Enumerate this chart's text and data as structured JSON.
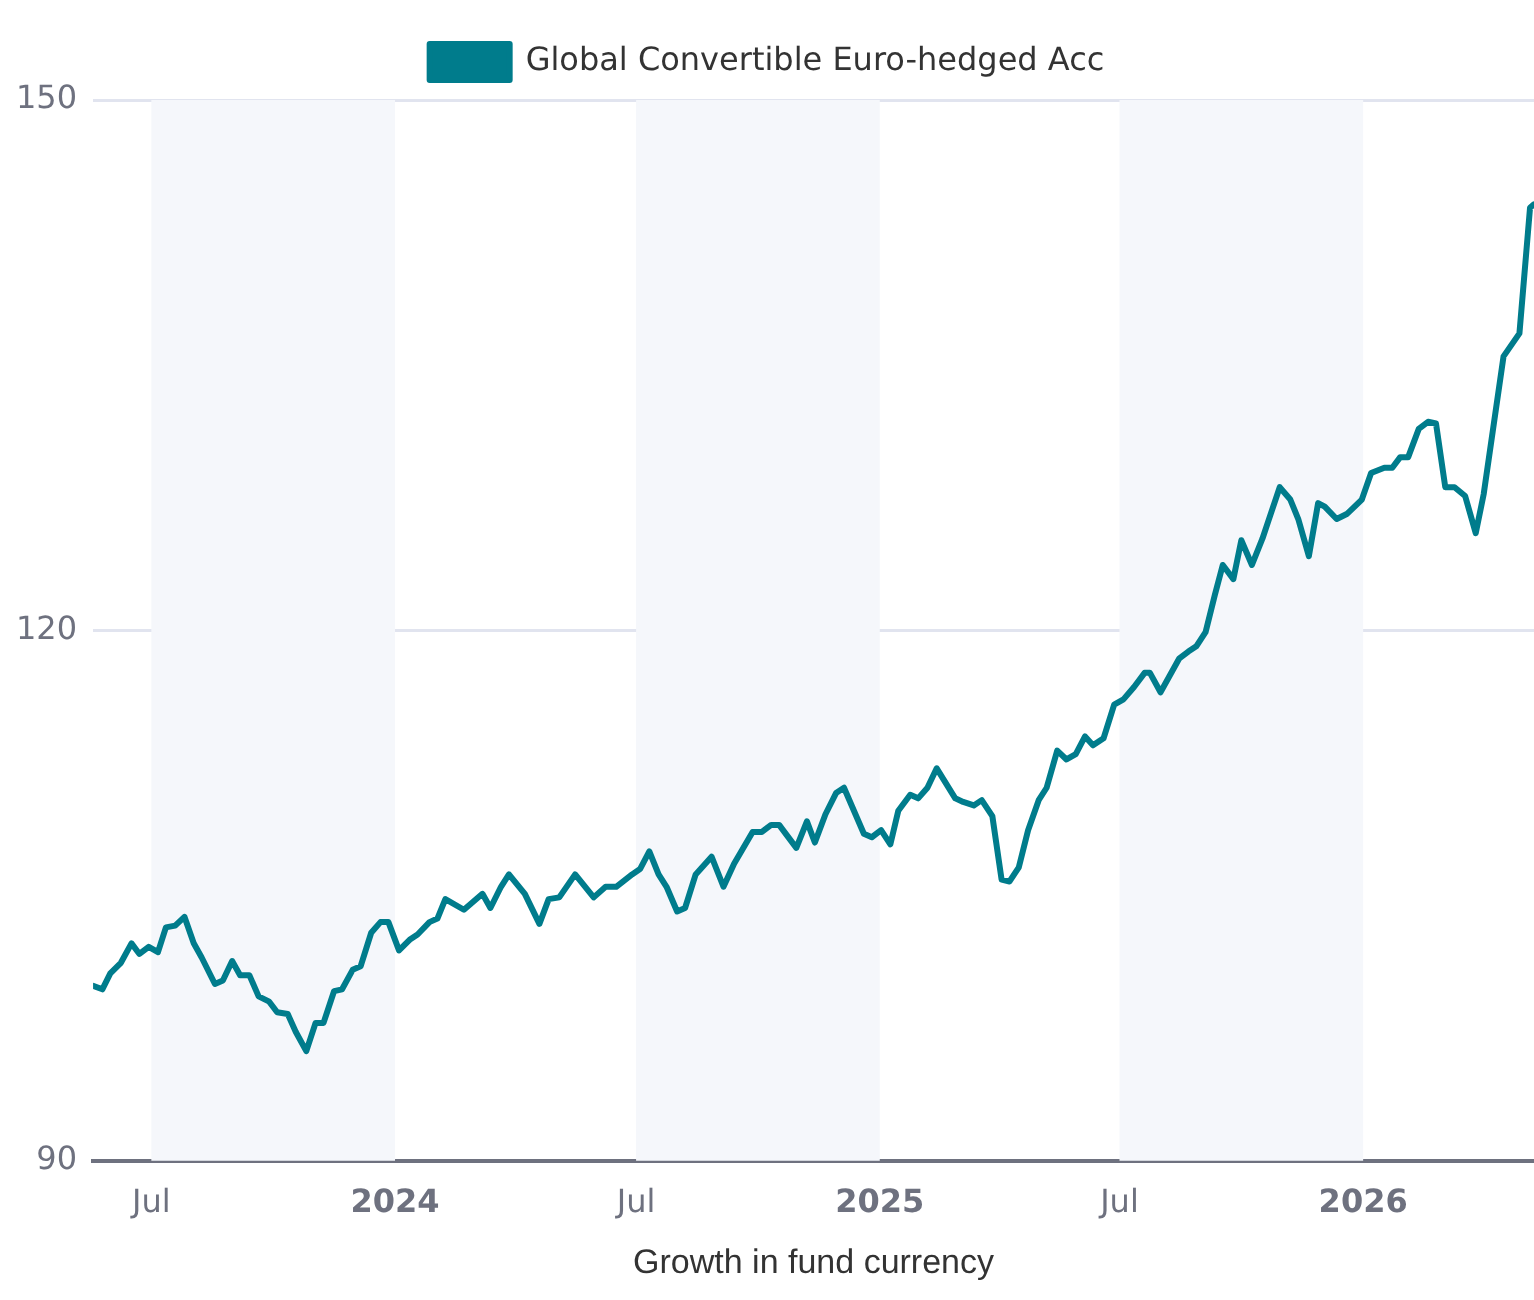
{
  "chart_data": {
    "type": "line",
    "xlabel": "Growth in fund currency",
    "legend": "top",
    "grid": "y",
    "marker": "none",
    "line_style": "solid",
    "xlim": [
      "2023-05-18",
      "2026-05-10"
    ],
    "ylim": [
      90,
      150
    ],
    "yticks": [
      90,
      120,
      150
    ],
    "xticks": [
      {
        "value": "2023-07-01",
        "label": "Jul"
      },
      {
        "value": "2024-01-01",
        "label": "2024"
      },
      {
        "value": "2024-07-01",
        "label": "Jul"
      },
      {
        "value": "2025-01-01",
        "label": "2025"
      },
      {
        "value": "2025-07-01",
        "label": "Jul"
      },
      {
        "value": "2026-01-01",
        "label": "2026"
      }
    ],
    "bands": [
      {
        "axis": "x",
        "from": "2023-07-01",
        "to": "2024-01-01",
        "color": "#f5f7fb"
      },
      {
        "axis": "x",
        "from": "2024-07-01",
        "to": "2025-01-01",
        "color": "#f5f7fb"
      },
      {
        "axis": "x",
        "from": "2025-07-01",
        "to": "2026-01-01",
        "color": "#f5f7fb"
      }
    ],
    "x": [
      "2023-05-18",
      "2023-05-25",
      "2023-05-31",
      "2023-06-08",
      "2023-06-16",
      "2023-06-22",
      "2023-06-29",
      "2023-07-06",
      "2023-07-12",
      "2023-07-19",
      "2023-07-26",
      "2023-08-02",
      "2023-08-08",
      "2023-08-18",
      "2023-08-24",
      "2023-08-31",
      "2023-09-06",
      "2023-09-13",
      "2023-09-20",
      "2023-09-28",
      "2023-10-04",
      "2023-10-12",
      "2023-10-18",
      "2023-10-26",
      "2023-11-02",
      "2023-11-08",
      "2023-11-16",
      "2023-11-22",
      "2023-11-30",
      "2023-12-06",
      "2023-12-14",
      "2023-12-21",
      "2023-12-27",
      "2024-01-04",
      "2024-01-12",
      "2024-01-18",
      "2024-01-27",
      "2024-02-02",
      "2024-02-08",
      "2024-02-22",
      "2024-03-07",
      "2024-03-13",
      "2024-03-21",
      "2024-03-27",
      "2024-04-08",
      "2024-04-19",
      "2024-04-26",
      "2024-05-04",
      "2024-05-16",
      "2024-05-30",
      "2024-06-08",
      "2024-06-16",
      "2024-06-28",
      "2024-07-04",
      "2024-07-11",
      "2024-07-18",
      "2024-07-24",
      "2024-08-01",
      "2024-08-07",
      "2024-08-15",
      "2024-08-27",
      "2024-09-05",
      "2024-09-13",
      "2024-09-27",
      "2024-10-04",
      "2024-10-11",
      "2024-10-17",
      "2024-10-30",
      "2024-11-07",
      "2024-11-13",
      "2024-11-21",
      "2024-11-29",
      "2024-12-05",
      "2024-12-20",
      "2024-12-26",
      "2025-01-02",
      "2025-01-09",
      "2025-01-15",
      "2025-01-24",
      "2025-01-30",
      "2025-02-06",
      "2025-02-13",
      "2025-02-27",
      "2025-03-05",
      "2025-03-13",
      "2025-03-19",
      "2025-03-27",
      "2025-04-03",
      "2025-04-09",
      "2025-04-16",
      "2025-04-23",
      "2025-05-01",
      "2025-05-07",
      "2025-05-15",
      "2025-05-22",
      "2025-05-29",
      "2025-06-05",
      "2025-06-11",
      "2025-06-19",
      "2025-06-27",
      "2025-07-04",
      "2025-07-12",
      "2025-07-20",
      "2025-07-24",
      "2025-08-01",
      "2025-08-15",
      "2025-08-22",
      "2025-08-28",
      "2025-09-04",
      "2025-09-11",
      "2025-09-17",
      "2025-09-25",
      "2025-10-01",
      "2025-10-09",
      "2025-10-17",
      "2025-10-30",
      "2025-11-07",
      "2025-11-13",
      "2025-11-21",
      "2025-11-28",
      "2025-12-03",
      "2025-12-12",
      "2025-12-20",
      "2025-12-31",
      "2026-01-07",
      "2026-01-17",
      "2026-01-23",
      "2026-01-29",
      "2026-02-04",
      "2026-02-12",
      "2026-02-19",
      "2026-02-25",
      "2026-03-04",
      "2026-03-11",
      "2026-03-19",
      "2026-03-27",
      "2026-04-02",
      "2026-04-17",
      "2026-04-29",
      "2026-05-07",
      "2026-05-10"
    ],
    "series": [
      {
        "name": "Global Convertible Euro-hedged Acc",
        "color": "#007c8c",
        "values": [
          99.9,
          99.7,
          100.6,
          101.2,
          102.3,
          101.7,
          102.1,
          101.8,
          103.2,
          103.3,
          103.8,
          102.3,
          101.5,
          100.0,
          100.2,
          101.3,
          100.5,
          100.5,
          99.3,
          99.0,
          98.4,
          98.3,
          97.3,
          96.2,
          97.8,
          97.8,
          99.6,
          99.7,
          100.8,
          101.0,
          102.9,
          103.5,
          103.5,
          101.9,
          102.5,
          102.8,
          103.5,
          103.7,
          104.8,
          104.2,
          105.1,
          104.3,
          105.5,
          106.2,
          105.1,
          103.4,
          104.8,
          104.9,
          106.2,
          104.9,
          105.5,
          105.5,
          106.2,
          106.5,
          107.5,
          106.2,
          105.5,
          104.1,
          104.3,
          106.2,
          107.2,
          105.5,
          106.8,
          108.6,
          108.6,
          109.0,
          109.0,
          107.7,
          109.2,
          108.0,
          109.6,
          110.8,
          111.1,
          108.5,
          108.3,
          108.7,
          107.9,
          109.8,
          110.7,
          110.5,
          111.1,
          112.2,
          110.5,
          110.3,
          110.1,
          110.4,
          109.5,
          105.9,
          105.8,
          106.6,
          108.7,
          110.4,
          111.1,
          113.2,
          112.7,
          113.0,
          114.0,
          113.5,
          113.9,
          115.8,
          116.1,
          116.8,
          117.6,
          117.6,
          116.5,
          118.4,
          118.8,
          119.1,
          119.9,
          122.0,
          123.7,
          122.9,
          125.1,
          123.7,
          125.2,
          128.1,
          127.4,
          126.3,
          124.2,
          127.2,
          127.0,
          126.3,
          126.6,
          127.4,
          128.9,
          129.2,
          129.2,
          129.8,
          129.8,
          131.4,
          131.8,
          131.7,
          128.1,
          128.1,
          127.6,
          125.5,
          127.7,
          135.5,
          136.8,
          143.9,
          144.1
        ]
      }
    ]
  }
}
